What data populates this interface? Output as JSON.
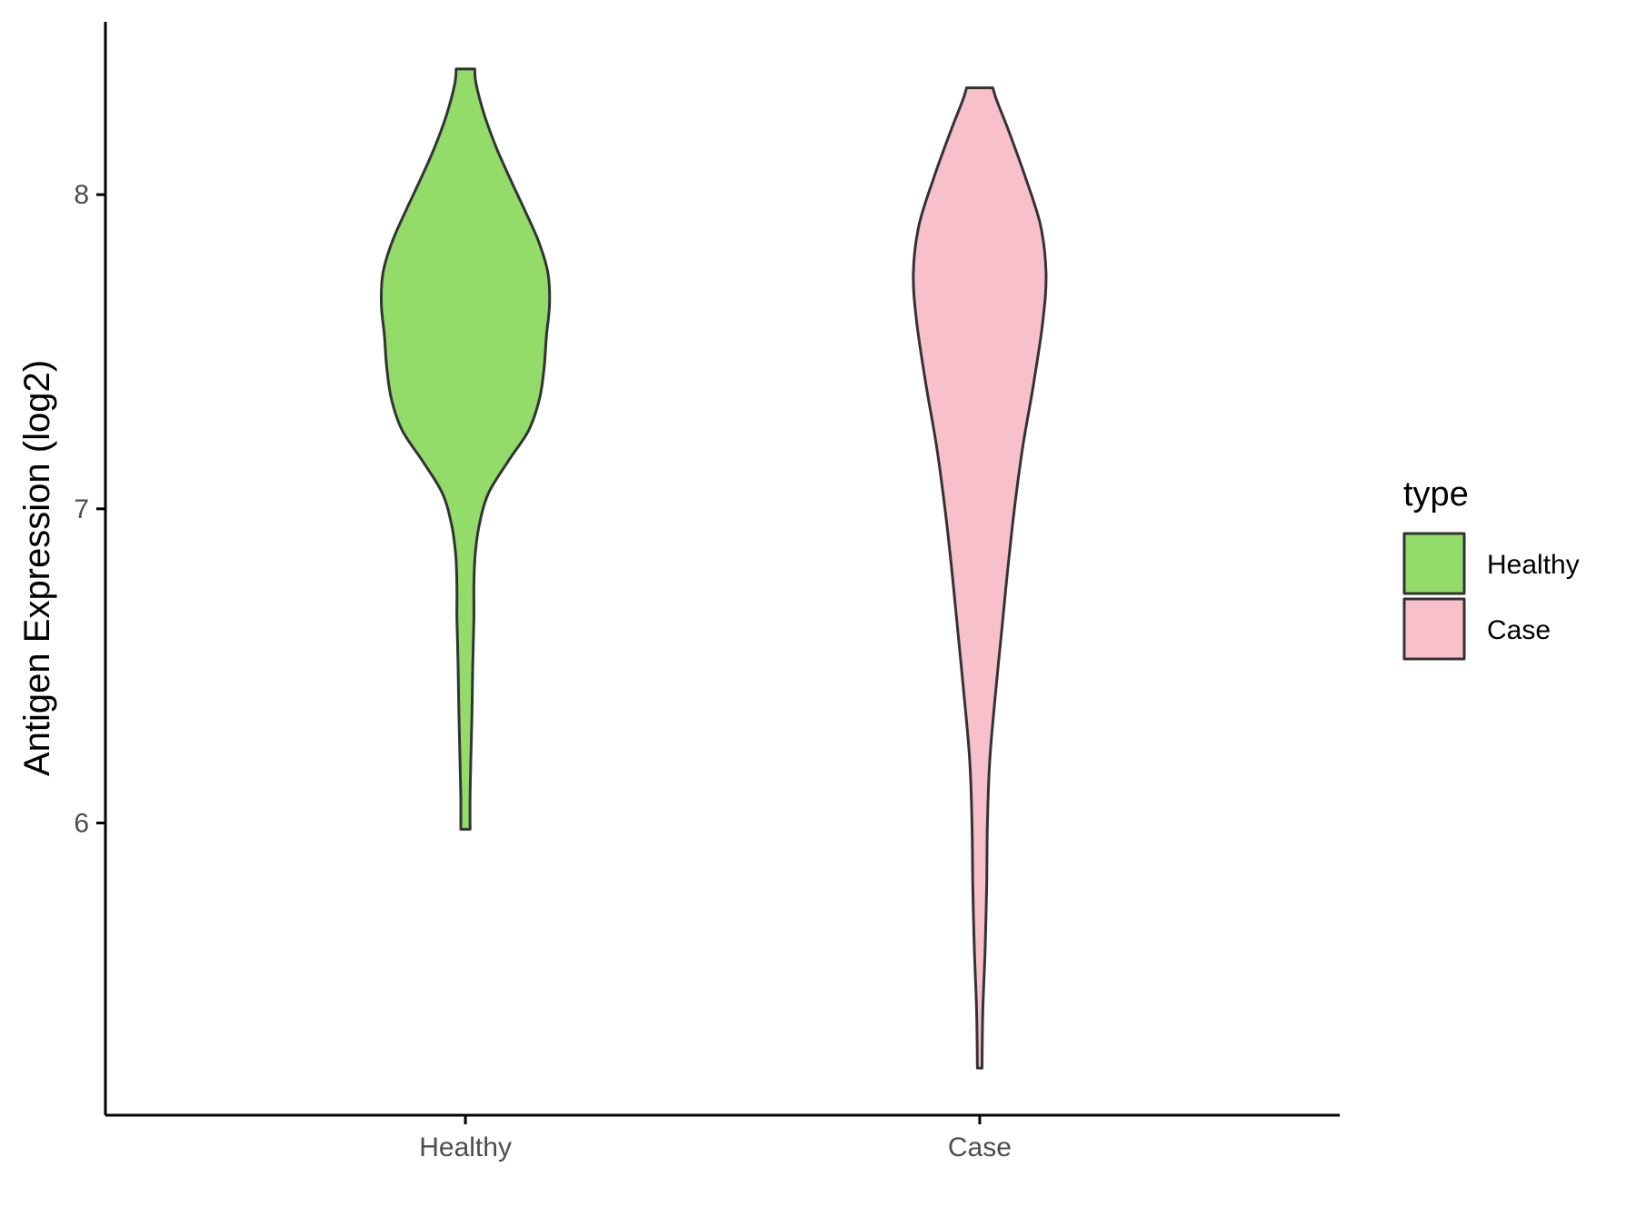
{
  "chart_data": {
    "type": "violin",
    "title": "",
    "xlabel": "",
    "ylabel": "Antigen Expression (log2)",
    "ylim": [
      5.07,
      8.55
    ],
    "yticks": [
      6,
      7,
      8
    ],
    "grid": false,
    "categories": [
      "Healthy",
      "Case"
    ],
    "series": [
      {
        "name": "Healthy",
        "color": "#93dc6a",
        "min": 5.98,
        "max": 8.4,
        "profile": [
          {
            "y": 5.98,
            "w": 0.06
          },
          {
            "y": 6.08,
            "w": 0.06
          },
          {
            "y": 6.2,
            "w": 0.07
          },
          {
            "y": 6.35,
            "w": 0.085
          },
          {
            "y": 6.5,
            "w": 0.095
          },
          {
            "y": 6.65,
            "w": 0.11
          },
          {
            "y": 6.75,
            "w": 0.11
          },
          {
            "y": 6.85,
            "w": 0.125
          },
          {
            "y": 6.95,
            "w": 0.18
          },
          {
            "y": 7.05,
            "w": 0.3
          },
          {
            "y": 7.15,
            "w": 0.55
          },
          {
            "y": 7.25,
            "w": 0.82
          },
          {
            "y": 7.35,
            "w": 0.96
          },
          {
            "y": 7.45,
            "w": 1.02
          },
          {
            "y": 7.55,
            "w": 1.05
          },
          {
            "y": 7.65,
            "w": 1.09
          },
          {
            "y": 7.75,
            "w": 1.07
          },
          {
            "y": 7.85,
            "w": 0.95
          },
          {
            "y": 7.95,
            "w": 0.77
          },
          {
            "y": 8.05,
            "w": 0.58
          },
          {
            "y": 8.15,
            "w": 0.4
          },
          {
            "y": 8.25,
            "w": 0.25
          },
          {
            "y": 8.35,
            "w": 0.14
          },
          {
            "y": 8.4,
            "w": 0.12
          }
        ]
      },
      {
        "name": "Case",
        "color": "#f8c0cb",
        "min": 5.22,
        "max": 8.34,
        "profile": [
          {
            "y": 5.22,
            "w": 0.03
          },
          {
            "y": 5.4,
            "w": 0.04
          },
          {
            "y": 5.6,
            "w": 0.07
          },
          {
            "y": 5.8,
            "w": 0.09
          },
          {
            "y": 6.0,
            "w": 0.1
          },
          {
            "y": 6.2,
            "w": 0.13
          },
          {
            "y": 6.4,
            "w": 0.2
          },
          {
            "y": 6.6,
            "w": 0.28
          },
          {
            "y": 6.8,
            "w": 0.36
          },
          {
            "y": 7.0,
            "w": 0.45
          },
          {
            "y": 7.2,
            "w": 0.56
          },
          {
            "y": 7.4,
            "w": 0.7
          },
          {
            "y": 7.6,
            "w": 0.82
          },
          {
            "y": 7.75,
            "w": 0.86
          },
          {
            "y": 7.9,
            "w": 0.79
          },
          {
            "y": 8.05,
            "w": 0.6
          },
          {
            "y": 8.2,
            "w": 0.38
          },
          {
            "y": 8.3,
            "w": 0.22
          },
          {
            "y": 8.34,
            "w": 0.17
          }
        ]
      }
    ],
    "legend": {
      "title": "type",
      "position": "right",
      "entries": [
        "Healthy",
        "Case"
      ]
    }
  }
}
